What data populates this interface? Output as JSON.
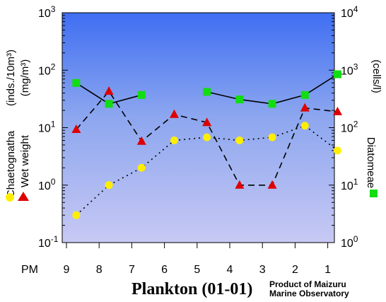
{
  "chart_data": {
    "type": "line",
    "title": "Plankton (01-01)",
    "credit_line1": "Product of Maizuru",
    "credit_line2": "Marine Observatory",
    "x_prefix": "PM",
    "categories": [
      "9",
      "8",
      "7",
      "6",
      "5",
      "4",
      "3",
      "2",
      "1"
    ],
    "left_axis": {
      "scale": "log",
      "range": [
        0.1,
        1000
      ],
      "ticks": [
        {
          "value": 0.1,
          "base": "10",
          "exp": "-1"
        },
        {
          "value": 1,
          "base": "10",
          "exp": "0"
        },
        {
          "value": 10,
          "base": "10",
          "exp": "1"
        },
        {
          "value": 100,
          "base": "10",
          "exp": "2"
        },
        {
          "value": 1000,
          "base": "10",
          "exp": "3"
        }
      ],
      "label_line1": "(inds./10m³)",
      "label_line2": "(mg/m³)"
    },
    "right_axis": {
      "scale": "log",
      "range": [
        1,
        10000
      ],
      "ticks": [
        {
          "value": 1,
          "base": "10",
          "exp": "0"
        },
        {
          "value": 10,
          "base": "10",
          "exp": "1"
        },
        {
          "value": 100,
          "base": "10",
          "exp": "2"
        },
        {
          "value": 1000,
          "base": "10",
          "exp": "3"
        },
        {
          "value": 10000,
          "base": "10",
          "exp": "4"
        }
      ],
      "label": "(cells/l)"
    },
    "series": [
      {
        "name": "Chaetognatha",
        "axis": "left",
        "marker": "circle",
        "color": "#ffee00",
        "line": "dotted",
        "values": [
          0.3,
          1.0,
          2.0,
          6.0,
          6.8,
          6.0,
          6.8,
          10.8,
          4.0
        ],
        "x": [
          0.3,
          1.3,
          2.3,
          3.3,
          4.3,
          5.3,
          6.3,
          7.3,
          8.3
        ]
      },
      {
        "name": "Wet weight",
        "axis": "left",
        "marker": "triangle",
        "color": "#dd0000",
        "line": "dashed",
        "values": [
          9.3,
          43,
          5.8,
          17,
          12.3,
          1.0,
          1.0,
          22,
          19
        ],
        "x": [
          0.3,
          1.3,
          2.3,
          3.3,
          4.3,
          5.3,
          6.3,
          7.3,
          8.3
        ]
      },
      {
        "name": "Diatomeae",
        "axis": "right",
        "marker": "square",
        "color": "#11dd11",
        "line": "solid",
        "values": [
          600,
          260,
          370,
          null,
          420,
          310,
          260,
          370,
          850
        ],
        "x": [
          0.3,
          1.3,
          2.3,
          3.3,
          4.3,
          5.3,
          6.3,
          7.3,
          8.3
        ]
      }
    ],
    "legend": {
      "left_labels": [
        "Chaetognatha",
        "Wet  weight"
      ],
      "right_label": "Diatomeae"
    }
  }
}
